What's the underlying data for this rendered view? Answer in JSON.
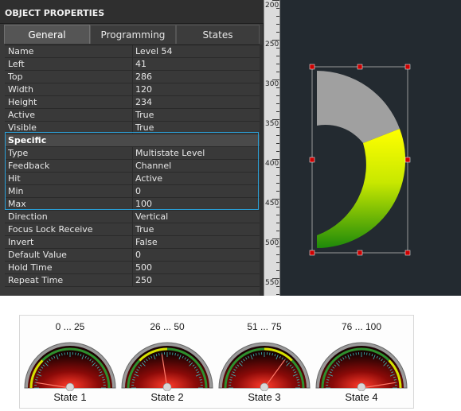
{
  "panel": {
    "title": "OBJECT PROPERTIES",
    "tabs": [
      {
        "label": "General",
        "active": true
      },
      {
        "label": "Programming",
        "active": false
      },
      {
        "label": "States",
        "active": false
      }
    ],
    "properties": [
      {
        "name": "Name",
        "value": "Level 54"
      },
      {
        "name": "Left",
        "value": "41"
      },
      {
        "name": "Top",
        "value": "286"
      },
      {
        "name": "Width",
        "value": "120"
      },
      {
        "name": "Height",
        "value": "234"
      },
      {
        "name": "Active",
        "value": "True"
      },
      {
        "name": "Visible",
        "value": "True"
      }
    ],
    "specific_header": "Specific",
    "specific": [
      {
        "name": "Type",
        "value": "Multistate Level"
      },
      {
        "name": "Feedback",
        "value": "Channel"
      },
      {
        "name": "Hit",
        "value": "Active"
      },
      {
        "name": "Min",
        "value": "0"
      },
      {
        "name": "Max",
        "value": "100"
      }
    ],
    "more": [
      {
        "name": "Direction",
        "value": "Vertical"
      },
      {
        "name": "Focus Lock Receive",
        "value": "True"
      },
      {
        "name": "Invert",
        "value": "False"
      },
      {
        "name": "Default Value",
        "value": "0"
      },
      {
        "name": "Hold Time",
        "value": "500"
      },
      {
        "name": "Repeat Time",
        "value": "250"
      }
    ]
  },
  "ruler": {
    "labels": [
      "200",
      "250",
      "300",
      "350",
      "400",
      "450",
      "500",
      "550"
    ]
  },
  "colors": {
    "arc_gray": "#a0a0a0",
    "arc_yellow": "#ffff00",
    "arc_green": "#2f8f10",
    "selection_handle": "#cc0000",
    "panel_bg": "#3a3a3a",
    "canvas_bg": "#232a30"
  },
  "states": [
    {
      "range": "0 ... 25",
      "name": "State 1",
      "needle_fraction": 0.05
    },
    {
      "range": "26 ... 50",
      "name": "State 2",
      "needle_fraction": 0.45
    },
    {
      "range": "51 ... 75",
      "name": "State 3",
      "needle_fraction": 0.7
    },
    {
      "range": "76 ... 100",
      "name": "State 4",
      "needle_fraction": 0.95
    }
  ]
}
